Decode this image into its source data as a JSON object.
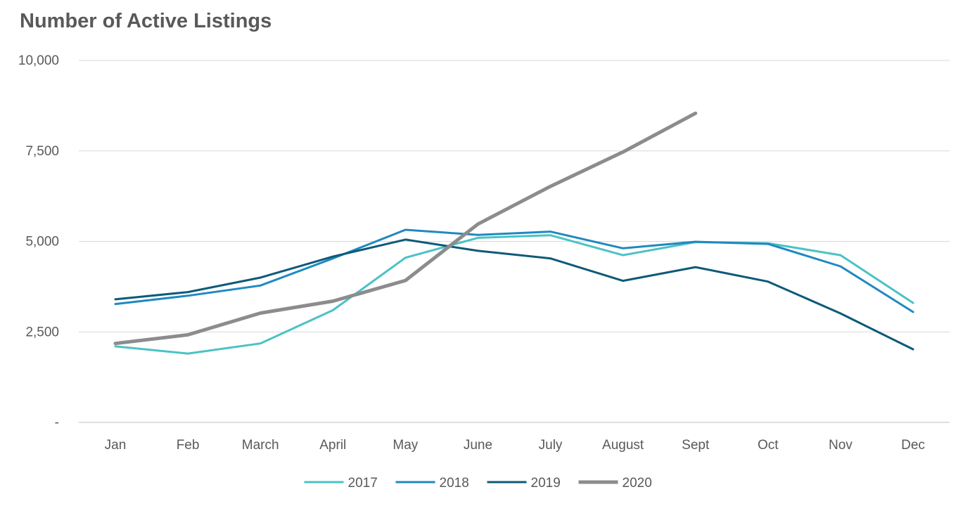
{
  "chart_data": {
    "type": "line",
    "title": "Number of Active Listings",
    "xlabel": "",
    "ylabel": "",
    "categories": [
      "Jan",
      "Feb",
      "March",
      "April",
      "May",
      "June",
      "July",
      "August",
      "Sept",
      "Oct",
      "Nov",
      "Dec"
    ],
    "ylim": [
      0,
      10000
    ],
    "yticks": [
      {
        "value": 0,
        "label": "-"
      },
      {
        "value": 2500,
        "label": "2,500"
      },
      {
        "value": 5000,
        "label": "5,000"
      },
      {
        "value": 7500,
        "label": "7,500"
      },
      {
        "value": 10000,
        "label": "10,000"
      }
    ],
    "grid": true,
    "legend_position": "bottom",
    "series": [
      {
        "name": "2017",
        "color": "#4bc2c5",
        "values": [
          2100,
          1900,
          2180,
          3100,
          4550,
          5100,
          5170,
          4620,
          4980,
          4950,
          4620,
          3300
        ]
      },
      {
        "name": "2018",
        "color": "#1f89c0",
        "values": [
          3270,
          3500,
          3780,
          4530,
          5320,
          5180,
          5270,
          4810,
          4990,
          4930,
          4310,
          3050
        ]
      },
      {
        "name": "2019",
        "color": "#0d5a78",
        "values": [
          3400,
          3600,
          4000,
          4580,
          5050,
          4740,
          4530,
          3910,
          4290,
          3890,
          3010,
          2020
        ]
      },
      {
        "name": "2020",
        "color": "#8c8c8c",
        "values": [
          2180,
          2420,
          3020,
          3350,
          3920,
          5480,
          6520,
          7470,
          8540,
          null,
          null,
          null
        ]
      }
    ]
  }
}
